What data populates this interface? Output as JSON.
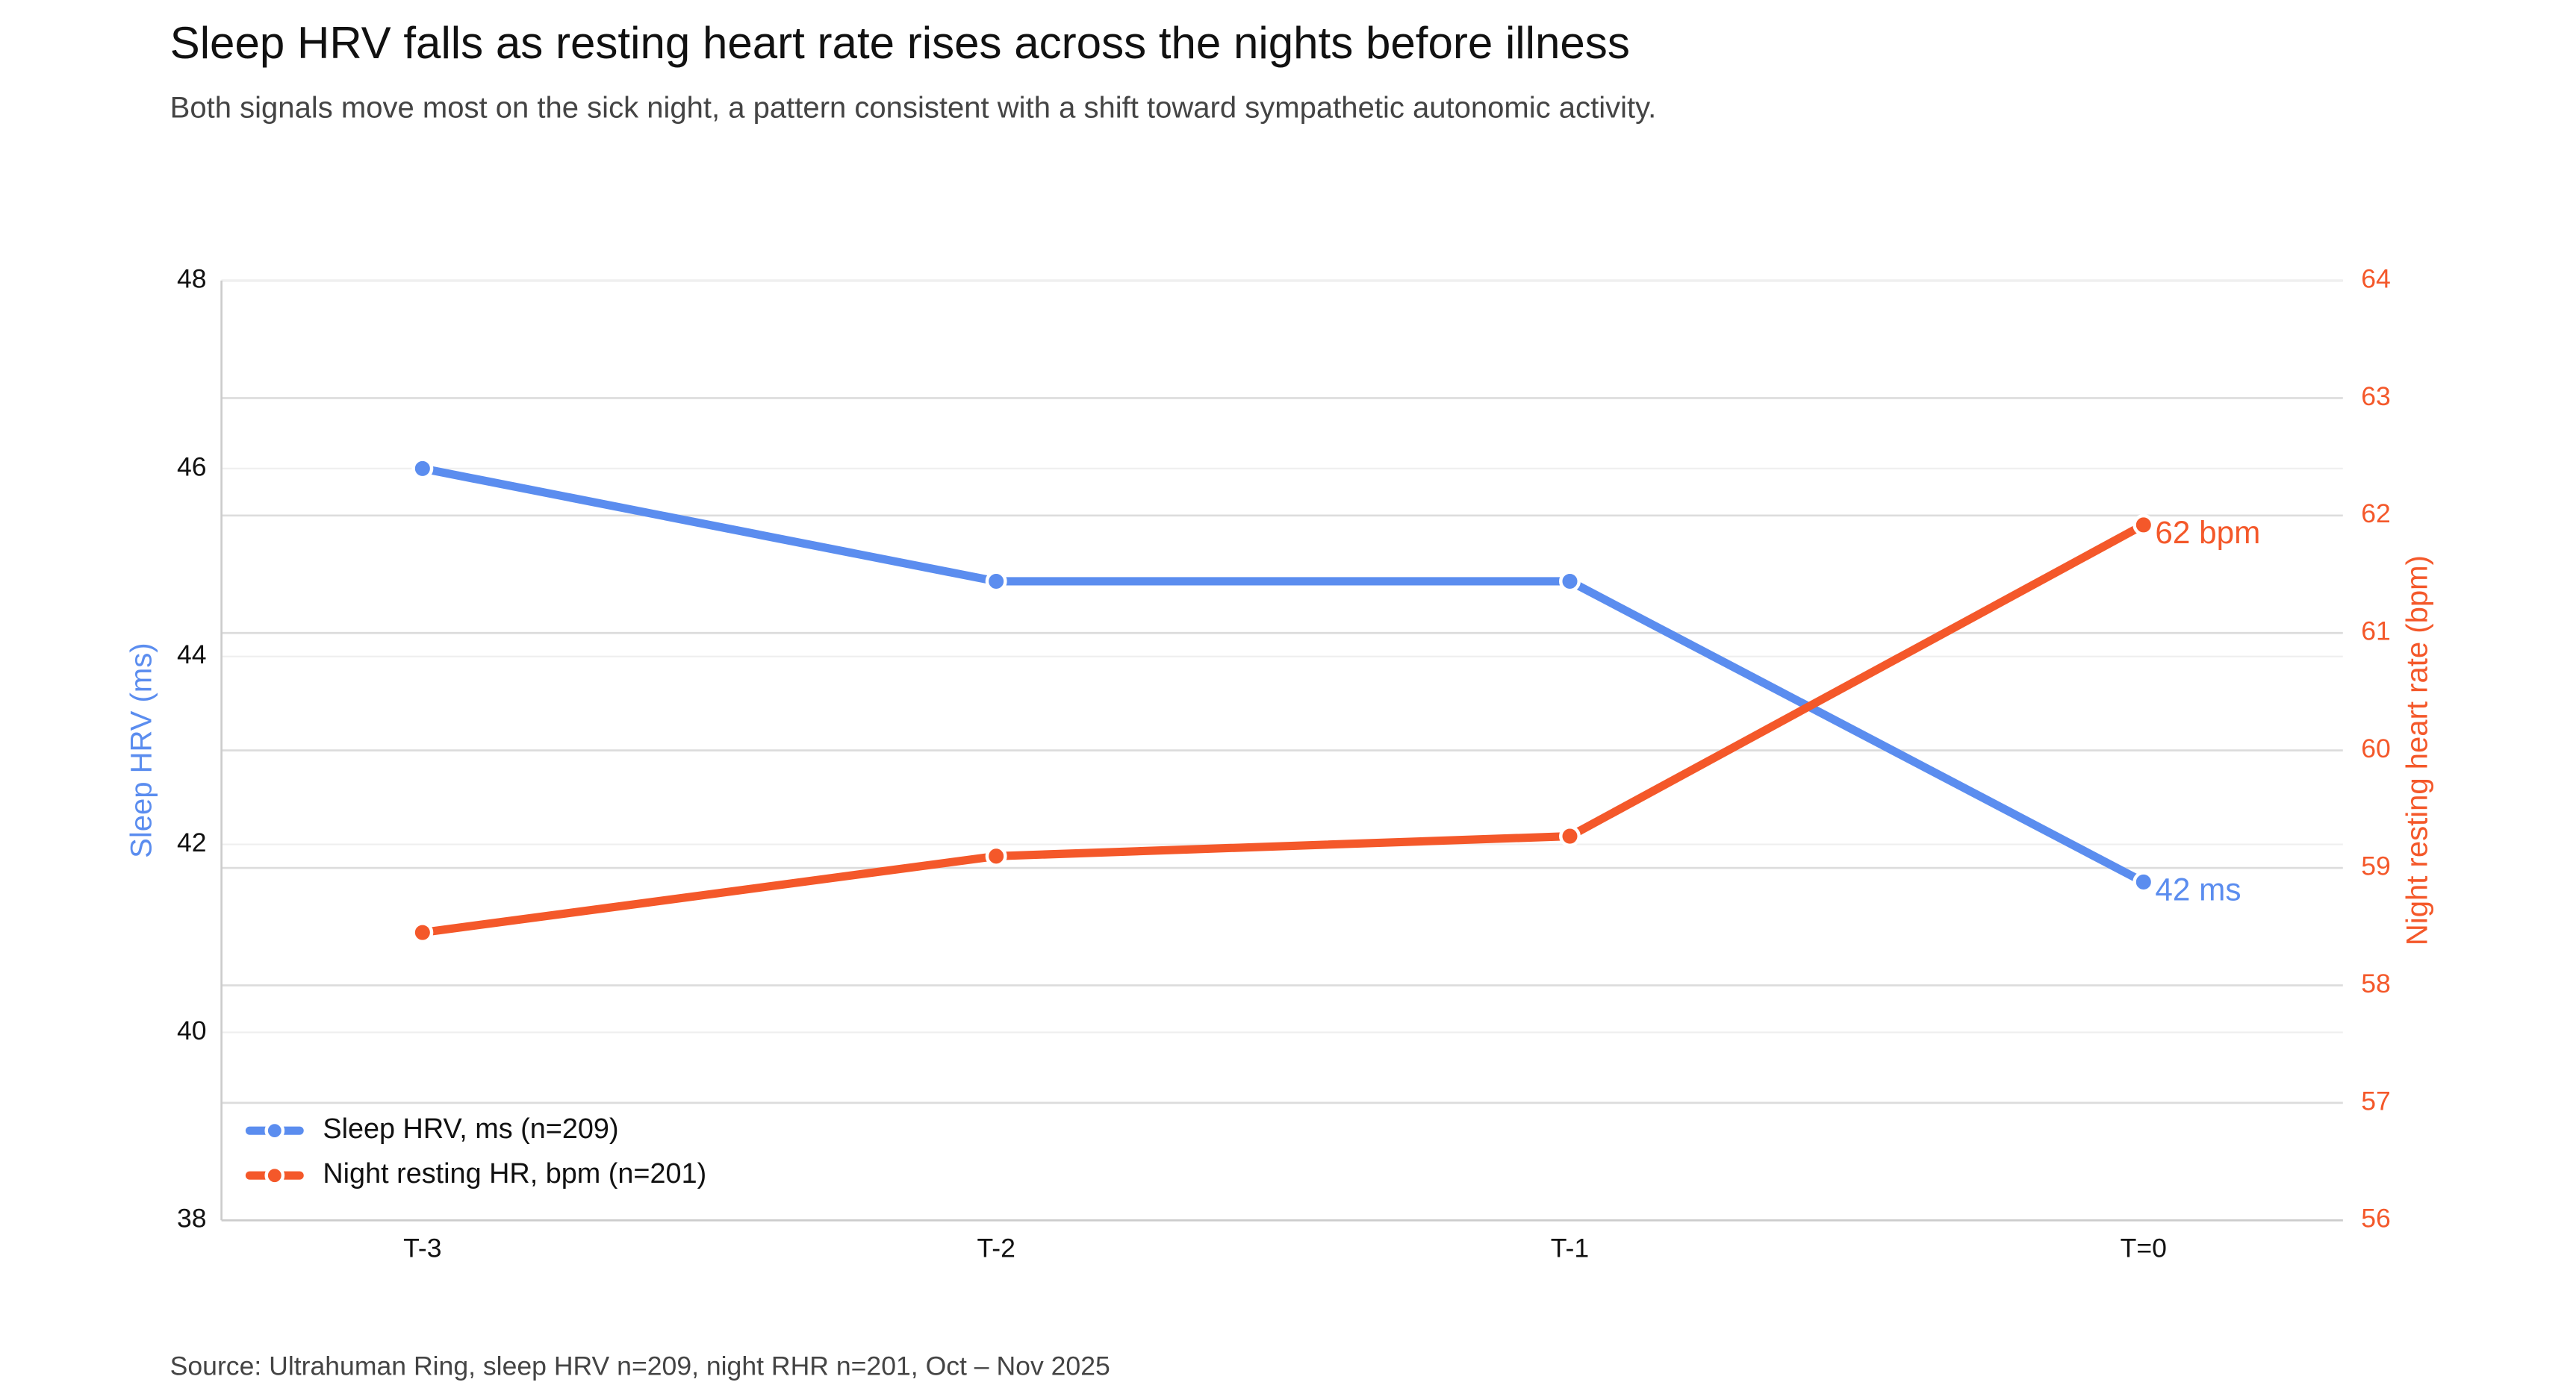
{
  "chart_data": {
    "type": "line",
    "title": "Sleep HRV falls as resting heart rate rises across the nights before illness",
    "subtitle": "Both signals move most on the sick night, a pattern consistent with a shift toward sympathetic autonomic activity.",
    "source": "Source: Ultrahuman Ring, sleep HRV n=209, night RHR n=201, Oct – Nov 2025",
    "categories": [
      "T-3",
      "T-2",
      "T-1",
      "T=0"
    ],
    "ylabel": "Sleep HRV (ms)",
    "y2label": "Night resting heart rate (bpm)",
    "ylim": [
      38,
      48
    ],
    "yticks": [
      38,
      40,
      42,
      44,
      46,
      48
    ],
    "y2lim": [
      56,
      64
    ],
    "y2ticks": [
      56,
      57,
      58,
      59,
      60,
      61,
      62,
      63,
      64
    ],
    "grid": true,
    "legend": "lower left",
    "series": [
      {
        "name": "Sleep HRV, ms (n=209)",
        "color": "#5b8def",
        "values": [
          46.0,
          44.8,
          44.8,
          41.6
        ],
        "value_labels": [
          null,
          null,
          null,
          "42 ms"
        ]
      },
      {
        "name": "Night resting HR, bpm (n=201)",
        "color": "#f4582a",
        "axis": "y2",
        "values": [
          58.45,
          59.1,
          59.27,
          61.92
        ],
        "value_labels": [
          null,
          null,
          null,
          "62 bpm"
        ]
      }
    ]
  }
}
